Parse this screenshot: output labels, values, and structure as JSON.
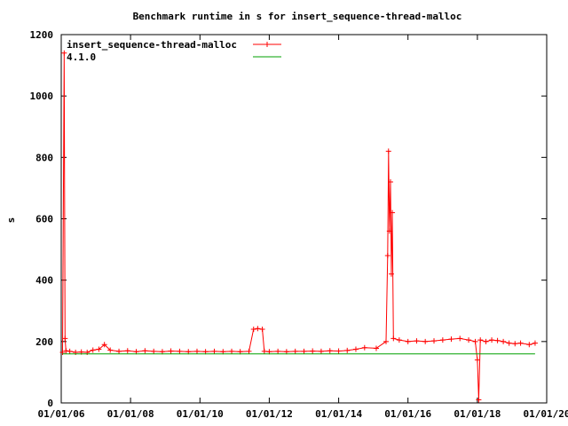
{
  "chart_data": {
    "type": "line",
    "title": "Benchmark runtime in s for insert_sequence-thread-malloc",
    "xlabel": "",
    "ylabel": "s",
    "xlim": [
      "2006-01-01",
      "2020-01-01"
    ],
    "ylim": [
      0,
      1200
    ],
    "xticks": [
      "01/01/06",
      "01/01/08",
      "01/01/10",
      "01/01/12",
      "01/01/14",
      "01/01/16",
      "01/01/18",
      "01/01/20"
    ],
    "yticks": [
      0,
      200,
      400,
      600,
      800,
      1000,
      1200
    ],
    "grid": false,
    "legend": "top-left",
    "series": [
      {
        "name": "insert_sequence-thread-malloc",
        "color": "#ff0000",
        "marker": "plus",
        "points": [
          [
            "2006-01-15",
            165
          ],
          [
            "2006-02-01",
            1140
          ],
          [
            "2006-02-10",
            210
          ],
          [
            "2006-02-20",
            170
          ],
          [
            "2006-04-01",
            168
          ],
          [
            "2006-06-01",
            165
          ],
          [
            "2006-08-01",
            166
          ],
          [
            "2006-10-01",
            165
          ],
          [
            "2006-12-01",
            172
          ],
          [
            "2007-02-01",
            175
          ],
          [
            "2007-04-01",
            190
          ],
          [
            "2007-06-01",
            172
          ],
          [
            "2007-09-01",
            168
          ],
          [
            "2007-12-01",
            170
          ],
          [
            "2008-03-01",
            167
          ],
          [
            "2008-06-01",
            170
          ],
          [
            "2008-09-01",
            168
          ],
          [
            "2008-12-01",
            167
          ],
          [
            "2009-03-01",
            169
          ],
          [
            "2009-06-01",
            168
          ],
          [
            "2009-09-01",
            167
          ],
          [
            "2009-12-01",
            168
          ],
          [
            "2010-03-01",
            167
          ],
          [
            "2010-06-01",
            168
          ],
          [
            "2010-09-01",
            167
          ],
          [
            "2010-12-01",
            168
          ],
          [
            "2011-03-01",
            167
          ],
          [
            "2011-06-01",
            168
          ],
          [
            "2011-07-20",
            240
          ],
          [
            "2011-09-01",
            242
          ],
          [
            "2011-10-20",
            240
          ],
          [
            "2011-11-10",
            168
          ],
          [
            "2012-01-01",
            167
          ],
          [
            "2012-04-01",
            168
          ],
          [
            "2012-07-01",
            167
          ],
          [
            "2012-10-01",
            168
          ],
          [
            "2013-01-01",
            168
          ],
          [
            "2013-04-01",
            169
          ],
          [
            "2013-07-01",
            168
          ],
          [
            "2013-10-01",
            170
          ],
          [
            "2014-01-01",
            169
          ],
          [
            "2014-04-01",
            171
          ],
          [
            "2014-07-01",
            175
          ],
          [
            "2014-10-01",
            180
          ],
          [
            "2015-02-01",
            178
          ],
          [
            "2015-05-15",
            200
          ],
          [
            "2015-06-01",
            480
          ],
          [
            "2015-06-10",
            820
          ],
          [
            "2015-06-20",
            560
          ],
          [
            "2015-07-01",
            720
          ],
          [
            "2015-07-10",
            420
          ],
          [
            "2015-07-20",
            620
          ],
          [
            "2015-08-01",
            210
          ],
          [
            "2015-10-01",
            205
          ],
          [
            "2016-01-01",
            200
          ],
          [
            "2016-04-01",
            202
          ],
          [
            "2016-07-01",
            200
          ],
          [
            "2016-10-01",
            202
          ],
          [
            "2017-01-01",
            205
          ],
          [
            "2017-04-01",
            208
          ],
          [
            "2017-07-01",
            210
          ],
          [
            "2017-10-01",
            205
          ],
          [
            "2017-12-10",
            200
          ],
          [
            "2018-01-01",
            140
          ],
          [
            "2018-01-15",
            10
          ],
          [
            "2018-02-01",
            205
          ],
          [
            "2018-04-01",
            200
          ],
          [
            "2018-06-01",
            205
          ],
          [
            "2018-08-01",
            203
          ],
          [
            "2018-10-01",
            200
          ],
          [
            "2018-12-01",
            195
          ],
          [
            "2019-02-01",
            193
          ],
          [
            "2019-04-01",
            195
          ],
          [
            "2019-07-01",
            190
          ],
          [
            "2019-09-01",
            195
          ]
        ]
      },
      {
        "name": "4.1.0",
        "color": "#00a000",
        "marker": "none",
        "points": [
          [
            "2006-01-15",
            160
          ],
          [
            "2019-09-01",
            160
          ]
        ]
      }
    ]
  }
}
